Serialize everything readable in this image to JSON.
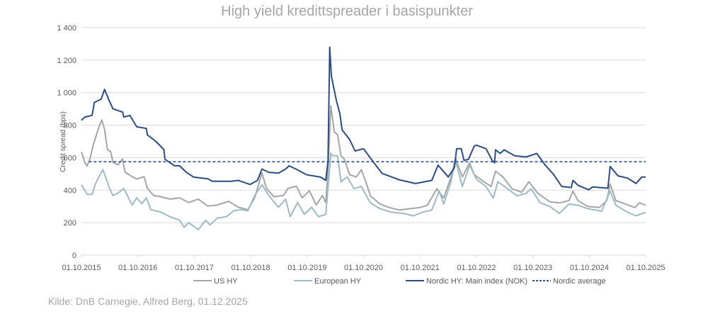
{
  "chart_data": {
    "type": "line",
    "title": "High yield kredittspreader i basispunkter",
    "xlabel": "",
    "ylabel": "Credit spread (bps)",
    "ylim": [
      0,
      1400
    ],
    "xlim": [
      2015.75,
      2025.75
    ],
    "yticks": [
      0,
      200,
      400,
      600,
      800,
      1000,
      1200,
      1400
    ],
    "ytick_labels": [
      "0",
      "200",
      "400",
      "600",
      "800",
      "1 000",
      "1 200",
      "1 400"
    ],
    "xticks": [
      2015.75,
      2016.75,
      2017.75,
      2018.75,
      2019.75,
      2020.75,
      2021.75,
      2022.75,
      2023.75,
      2024.75,
      2025.75
    ],
    "xtick_labels": [
      "01.10.2015",
      "01.10.2016",
      "01.10.2017",
      "01.10.2018",
      "01.10.2019",
      "01.10.2020",
      "01.10.2021",
      "01.10.2022",
      "01.10.2023",
      "01.10.2024",
      "01.10.2025"
    ],
    "grid": true,
    "legend_position": "bottom",
    "series": [
      {
        "name": "US HY",
        "color": "#a5a5a5",
        "dash": false,
        "points": [
          [
            2015.75,
            636
          ],
          [
            2015.81,
            570
          ],
          [
            2015.85,
            549
          ],
          [
            2015.9,
            592
          ],
          [
            2015.96,
            679
          ],
          [
            2016.04,
            766
          ],
          [
            2016.06,
            788
          ],
          [
            2016.11,
            832
          ],
          [
            2016.16,
            774
          ],
          [
            2016.21,
            650
          ],
          [
            2016.27,
            636
          ],
          [
            2016.31,
            570
          ],
          [
            2016.4,
            556
          ],
          [
            2016.48,
            592
          ],
          [
            2016.52,
            512
          ],
          [
            2016.65,
            483
          ],
          [
            2016.73,
            469
          ],
          [
            2016.86,
            483
          ],
          [
            2016.92,
            411
          ],
          [
            2017.03,
            367
          ],
          [
            2017.15,
            360
          ],
          [
            2017.32,
            345
          ],
          [
            2017.49,
            353
          ],
          [
            2017.65,
            324
          ],
          [
            2017.82,
            345
          ],
          [
            2017.99,
            302
          ],
          [
            2018.16,
            309
          ],
          [
            2018.36,
            331
          ],
          [
            2018.53,
            295
          ],
          [
            2018.7,
            280
          ],
          [
            2018.82,
            353
          ],
          [
            2018.95,
            505
          ],
          [
            2019.03,
            411
          ],
          [
            2019.16,
            360
          ],
          [
            2019.33,
            367
          ],
          [
            2019.41,
            411
          ],
          [
            2019.56,
            425
          ],
          [
            2019.66,
            353
          ],
          [
            2019.79,
            396
          ],
          [
            2019.91,
            309
          ],
          [
            2020.02,
            367
          ],
          [
            2020.08,
            324
          ],
          [
            2020.12,
            527
          ],
          [
            2020.17,
            919
          ],
          [
            2020.23,
            759
          ],
          [
            2020.29,
            742
          ],
          [
            2020.35,
            612
          ],
          [
            2020.41,
            590
          ],
          [
            2020.5,
            496
          ],
          [
            2020.62,
            481
          ],
          [
            2020.71,
            525
          ],
          [
            2020.79,
            452
          ],
          [
            2020.87,
            365
          ],
          [
            2021.04,
            315
          ],
          [
            2021.21,
            293
          ],
          [
            2021.38,
            278
          ],
          [
            2021.58,
            286
          ],
          [
            2021.75,
            293
          ],
          [
            2021.88,
            307
          ],
          [
            2022.05,
            409
          ],
          [
            2022.17,
            351
          ],
          [
            2022.3,
            481
          ],
          [
            2022.38,
            597
          ],
          [
            2022.5,
            481
          ],
          [
            2022.63,
            568
          ],
          [
            2022.71,
            496
          ],
          [
            2022.88,
            452
          ],
          [
            2023.01,
            423
          ],
          [
            2023.09,
            517
          ],
          [
            2023.22,
            481
          ],
          [
            2023.38,
            409
          ],
          [
            2023.55,
            387
          ],
          [
            2023.68,
            452
          ],
          [
            2023.84,
            380
          ],
          [
            2024.05,
            329
          ],
          [
            2024.22,
            322
          ],
          [
            2024.39,
            336
          ],
          [
            2024.46,
            394
          ],
          [
            2024.55,
            336
          ],
          [
            2024.72,
            300
          ],
          [
            2024.93,
            293
          ],
          [
            2025.06,
            336
          ],
          [
            2025.12,
            438
          ],
          [
            2025.22,
            336
          ],
          [
            2025.39,
            315
          ],
          [
            2025.56,
            293
          ],
          [
            2025.64,
            322
          ],
          [
            2025.75,
            307
          ]
        ]
      },
      {
        "name": "European HY",
        "color": "#9dbac8",
        "dash": false,
        "points": [
          [
            2015.75,
            433
          ],
          [
            2015.85,
            374
          ],
          [
            2015.94,
            374
          ],
          [
            2016.0,
            440
          ],
          [
            2016.06,
            483
          ],
          [
            2016.13,
            527
          ],
          [
            2016.19,
            469
          ],
          [
            2016.25,
            411
          ],
          [
            2016.31,
            367
          ],
          [
            2016.4,
            382
          ],
          [
            2016.5,
            411
          ],
          [
            2016.65,
            309
          ],
          [
            2016.73,
            353
          ],
          [
            2016.82,
            316
          ],
          [
            2016.9,
            353
          ],
          [
            2016.98,
            280
          ],
          [
            2017.15,
            266
          ],
          [
            2017.32,
            237
          ],
          [
            2017.49,
            215
          ],
          [
            2017.57,
            171
          ],
          [
            2017.65,
            200
          ],
          [
            2017.82,
            157
          ],
          [
            2017.95,
            215
          ],
          [
            2018.03,
            186
          ],
          [
            2018.16,
            229
          ],
          [
            2018.32,
            237
          ],
          [
            2018.45,
            273
          ],
          [
            2018.57,
            280
          ],
          [
            2018.7,
            273
          ],
          [
            2018.82,
            367
          ],
          [
            2018.95,
            433
          ],
          [
            2019.07,
            367
          ],
          [
            2019.24,
            295
          ],
          [
            2019.37,
            345
          ],
          [
            2019.45,
            237
          ],
          [
            2019.58,
            324
          ],
          [
            2019.7,
            251
          ],
          [
            2019.83,
            295
          ],
          [
            2019.95,
            237
          ],
          [
            2020.08,
            251
          ],
          [
            2020.12,
            411
          ],
          [
            2020.17,
            628
          ],
          [
            2020.2,
            612
          ],
          [
            2020.29,
            612
          ],
          [
            2020.35,
            452
          ],
          [
            2020.46,
            481
          ],
          [
            2020.58,
            409
          ],
          [
            2020.71,
            423
          ],
          [
            2020.87,
            322
          ],
          [
            2021.04,
            286
          ],
          [
            2021.25,
            264
          ],
          [
            2021.46,
            257
          ],
          [
            2021.63,
            242
          ],
          [
            2021.79,
            264
          ],
          [
            2021.96,
            278
          ],
          [
            2022.09,
            394
          ],
          [
            2022.17,
            315
          ],
          [
            2022.3,
            452
          ],
          [
            2022.38,
            583
          ],
          [
            2022.5,
            423
          ],
          [
            2022.63,
            554
          ],
          [
            2022.75,
            467
          ],
          [
            2022.92,
            423
          ],
          [
            2023.05,
            351
          ],
          [
            2023.13,
            452
          ],
          [
            2023.3,
            409
          ],
          [
            2023.47,
            365
          ],
          [
            2023.63,
            380
          ],
          [
            2023.72,
            409
          ],
          [
            2023.88,
            322
          ],
          [
            2024.05,
            300
          ],
          [
            2024.22,
            257
          ],
          [
            2024.39,
            315
          ],
          [
            2024.55,
            307
          ],
          [
            2024.72,
            286
          ],
          [
            2024.97,
            271
          ],
          [
            2025.12,
            394
          ],
          [
            2025.22,
            307
          ],
          [
            2025.43,
            264
          ],
          [
            2025.58,
            242
          ],
          [
            2025.75,
            264
          ]
        ]
      },
      {
        "name": "Nordic HY: Main index (NOK)",
        "color": "#2c4c85",
        "dash": false,
        "points": [
          [
            2015.75,
            830
          ],
          [
            2015.81,
            850
          ],
          [
            2015.94,
            860
          ],
          [
            2015.98,
            940
          ],
          [
            2016.1,
            960
          ],
          [
            2016.16,
            1020
          ],
          [
            2016.23,
            960
          ],
          [
            2016.31,
            900
          ],
          [
            2016.48,
            880
          ],
          [
            2016.5,
            850
          ],
          [
            2016.61,
            860
          ],
          [
            2016.73,
            790
          ],
          [
            2016.9,
            780
          ],
          [
            2016.92,
            740
          ],
          [
            2017.07,
            700
          ],
          [
            2017.21,
            650
          ],
          [
            2017.23,
            590
          ],
          [
            2017.4,
            550
          ],
          [
            2017.49,
            550
          ],
          [
            2017.61,
            510
          ],
          [
            2017.74,
            480
          ],
          [
            2017.99,
            470
          ],
          [
            2018.07,
            455
          ],
          [
            2018.41,
            455
          ],
          [
            2018.53,
            460
          ],
          [
            2018.74,
            435
          ],
          [
            2018.87,
            460
          ],
          [
            2018.95,
            530
          ],
          [
            2019.07,
            510
          ],
          [
            2019.24,
            505
          ],
          [
            2019.37,
            530
          ],
          [
            2019.43,
            550
          ],
          [
            2019.58,
            525
          ],
          [
            2019.74,
            495
          ],
          [
            2019.99,
            480
          ],
          [
            2020.08,
            460
          ],
          [
            2020.12,
            580
          ],
          [
            2020.15,
            1280
          ],
          [
            2020.18,
            1100
          ],
          [
            2020.27,
            950
          ],
          [
            2020.33,
            872
          ],
          [
            2020.37,
            771
          ],
          [
            2020.5,
            713
          ],
          [
            2020.6,
            641
          ],
          [
            2020.75,
            655
          ],
          [
            2020.92,
            575
          ],
          [
            2021.08,
            503
          ],
          [
            2021.38,
            464
          ],
          [
            2021.67,
            441
          ],
          [
            2021.96,
            460
          ],
          [
            2022.07,
            554
          ],
          [
            2022.25,
            481
          ],
          [
            2022.36,
            539
          ],
          [
            2022.4,
            655
          ],
          [
            2022.48,
            655
          ],
          [
            2022.53,
            583
          ],
          [
            2022.61,
            590
          ],
          [
            2022.71,
            670
          ],
          [
            2022.75,
            677
          ],
          [
            2022.92,
            655
          ],
          [
            2023.03,
            583
          ],
          [
            2023.07,
            568
          ],
          [
            2023.09,
            648
          ],
          [
            2023.17,
            626
          ],
          [
            2023.24,
            648
          ],
          [
            2023.43,
            612
          ],
          [
            2023.63,
            604
          ],
          [
            2023.82,
            626
          ],
          [
            2023.97,
            554
          ],
          [
            2024.12,
            496
          ],
          [
            2024.26,
            423
          ],
          [
            2024.43,
            416
          ],
          [
            2024.46,
            460
          ],
          [
            2024.55,
            430
          ],
          [
            2024.74,
            402
          ],
          [
            2024.81,
            420
          ],
          [
            2025.08,
            412
          ],
          [
            2025.12,
            546
          ],
          [
            2025.26,
            488
          ],
          [
            2025.43,
            474
          ],
          [
            2025.58,
            441
          ],
          [
            2025.68,
            481
          ],
          [
            2025.75,
            481
          ]
        ]
      },
      {
        "name": "Nordic average",
        "color": "#2f5597",
        "dash": true,
        "points": [
          [
            2015.88,
            575
          ],
          [
            2025.75,
            575
          ]
        ]
      }
    ]
  },
  "source": "Kilde: DnB Carnegie, Alfred Berg, 01.12.2025"
}
